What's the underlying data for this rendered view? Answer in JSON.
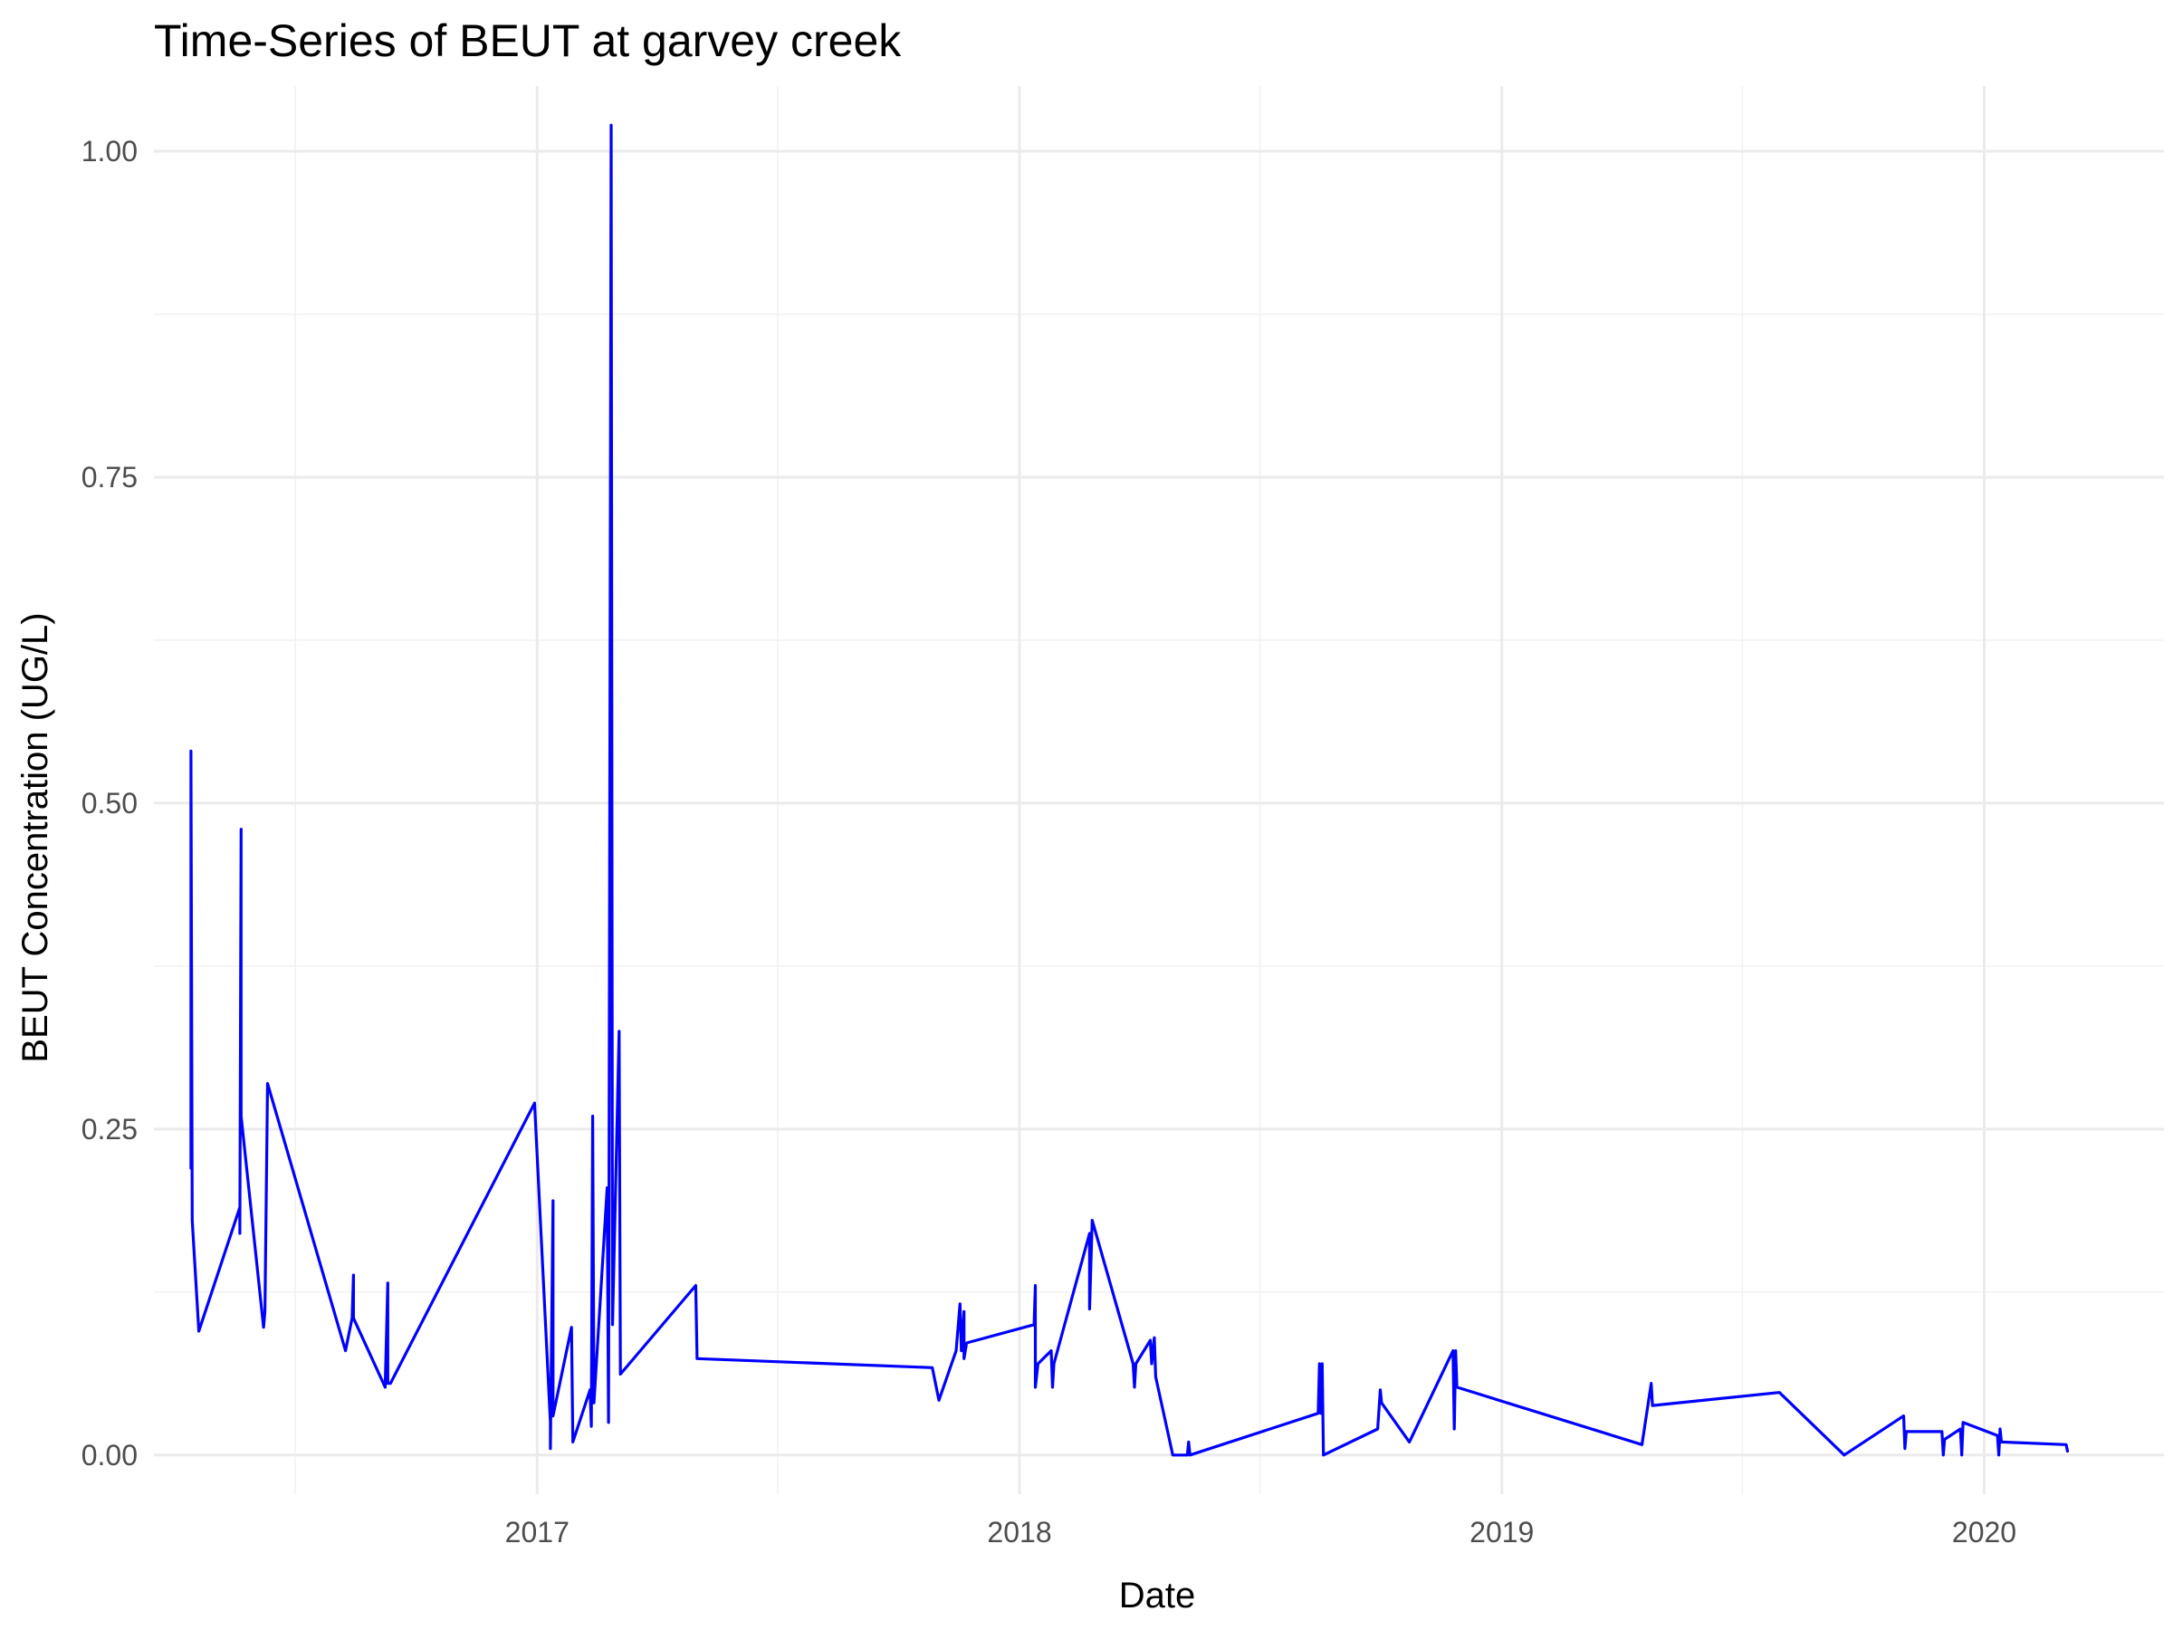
{
  "chart_data": {
    "type": "line",
    "title": "Time-Series of BEUT at garvey creek",
    "xlabel": "Date",
    "ylabel": "BEUT Concentration (UG/L)",
    "xlim": [
      "2016-03-17",
      "2020-05-16"
    ],
    "ylim": [
      -0.03,
      1.05
    ],
    "x_ticks": [
      {
        "date": "2017-01-01",
        "label": "2017"
      },
      {
        "date": "2018-01-01",
        "label": "2018"
      },
      {
        "date": "2019-01-01",
        "label": "2019"
      },
      {
        "date": "2020-01-01",
        "label": "2020"
      }
    ],
    "x_minor": [
      "2016-07-02",
      "2017-07-02",
      "2018-07-02",
      "2019-07-02"
    ],
    "y_ticks": [
      {
        "value": 0.0,
        "label": "0.00"
      },
      {
        "value": 0.25,
        "label": "0.25"
      },
      {
        "value": 0.5,
        "label": "0.50"
      },
      {
        "value": 0.75,
        "label": "0.75"
      },
      {
        "value": 1.0,
        "label": "1.00"
      }
    ],
    "y_minor": [
      0.125,
      0.375,
      0.625,
      0.875
    ],
    "grid": true,
    "series": [
      {
        "color": "#0000ff",
        "points": [
          [
            "2016-04-14",
            0.22
          ],
          [
            "2016-04-14",
            0.54
          ],
          [
            "2016-04-15",
            0.18
          ],
          [
            "2016-04-20",
            0.095
          ],
          [
            "2016-05-21",
            0.19
          ],
          [
            "2016-05-21",
            0.17
          ],
          [
            "2016-05-22",
            0.48
          ],
          [
            "2016-05-22",
            0.26
          ],
          [
            "2016-06-08",
            0.098
          ],
          [
            "2016-06-09",
            0.11
          ],
          [
            "2016-06-11",
            0.285
          ],
          [
            "2016-08-09",
            0.08
          ],
          [
            "2016-08-14",
            0.105
          ],
          [
            "2016-08-15",
            0.138
          ],
          [
            "2016-08-15",
            0.105
          ],
          [
            "2016-09-08",
            0.052
          ],
          [
            "2016-09-10",
            0.132
          ],
          [
            "2016-09-10",
            0.055
          ],
          [
            "2016-09-12",
            0.055
          ],
          [
            "2016-12-30",
            0.27
          ],
          [
            "2017-01-11",
            0.025
          ],
          [
            "2017-01-11",
            0.005
          ],
          [
            "2017-01-13",
            0.195
          ],
          [
            "2017-01-13",
            0.03
          ],
          [
            "2017-01-27",
            0.098
          ],
          [
            "2017-01-28",
            0.01
          ],
          [
            "2017-02-10",
            0.05
          ],
          [
            "2017-02-11",
            0.022
          ],
          [
            "2017-02-12",
            0.26
          ],
          [
            "2017-02-13",
            0.04
          ],
          [
            "2017-02-23",
            0.205
          ],
          [
            "2017-02-24",
            0.025
          ],
          [
            "2017-02-26",
            1.02
          ],
          [
            "2017-02-27",
            0.1
          ],
          [
            "2017-03-04",
            0.325
          ],
          [
            "2017-03-05",
            0.062
          ],
          [
            "2017-05-01",
            0.13
          ],
          [
            "2017-05-02",
            0.074
          ],
          [
            "2017-10-27",
            0.067
          ],
          [
            "2017-11-01",
            0.042
          ],
          [
            "2017-11-14",
            0.08
          ],
          [
            "2017-11-17",
            0.116
          ],
          [
            "2017-11-18",
            0.08
          ],
          [
            "2017-11-20",
            0.11
          ],
          [
            "2017-11-20",
            0.074
          ],
          [
            "2017-11-22",
            0.086
          ],
          [
            "2018-01-12",
            0.1
          ],
          [
            "2018-01-13",
            0.13
          ],
          [
            "2018-01-13",
            0.052
          ],
          [
            "2018-01-15",
            0.07
          ],
          [
            "2018-01-25",
            0.08
          ],
          [
            "2018-01-26",
            0.052
          ],
          [
            "2018-01-27",
            0.07
          ],
          [
            "2018-02-23",
            0.17
          ],
          [
            "2018-02-23",
            0.112
          ],
          [
            "2018-02-25",
            0.18
          ],
          [
            "2018-03-28",
            0.07
          ],
          [
            "2018-03-29",
            0.052
          ],
          [
            "2018-03-30",
            0.07
          ],
          [
            "2018-04-10",
            0.088
          ],
          [
            "2018-04-11",
            0.07
          ],
          [
            "2018-04-13",
            0.09
          ],
          [
            "2018-04-14",
            0.06
          ],
          [
            "2018-04-27",
            0.0
          ],
          [
            "2018-05-08",
            0.0
          ],
          [
            "2018-05-09",
            0.01
          ],
          [
            "2018-05-10",
            0.0
          ],
          [
            "2018-08-15",
            0.032
          ],
          [
            "2018-08-16",
            0.07
          ],
          [
            "2018-08-17",
            0.032
          ],
          [
            "2018-08-18",
            0.07
          ],
          [
            "2018-08-19",
            0.0
          ],
          [
            "2018-09-29",
            0.02
          ],
          [
            "2018-10-01",
            0.05
          ],
          [
            "2018-10-02",
            0.04
          ],
          [
            "2018-10-23",
            0.01
          ],
          [
            "2018-11-25",
            0.08
          ],
          [
            "2018-11-26",
            0.02
          ],
          [
            "2018-11-27",
            0.08
          ],
          [
            "2018-11-28",
            0.052
          ],
          [
            "2019-04-17",
            0.008
          ],
          [
            "2019-04-24",
            0.055
          ],
          [
            "2019-04-25",
            0.038
          ],
          [
            "2019-07-30",
            0.048
          ],
          [
            "2019-09-17",
            0.0
          ],
          [
            "2019-11-01",
            0.03
          ],
          [
            "2019-11-02",
            0.005
          ],
          [
            "2019-11-03",
            0.018
          ],
          [
            "2019-11-30",
            0.018
          ],
          [
            "2019-12-01",
            0.0
          ],
          [
            "2019-12-02",
            0.012
          ],
          [
            "2019-12-14",
            0.02
          ],
          [
            "2019-12-15",
            0.0
          ],
          [
            "2019-12-16",
            0.025
          ],
          [
            "2020-01-11",
            0.015
          ],
          [
            "2020-01-12",
            0.0
          ],
          [
            "2020-01-13",
            0.02
          ],
          [
            "2020-01-14",
            0.01
          ],
          [
            "2020-03-03",
            0.008
          ],
          [
            "2020-03-04",
            0.003
          ]
        ]
      }
    ]
  }
}
